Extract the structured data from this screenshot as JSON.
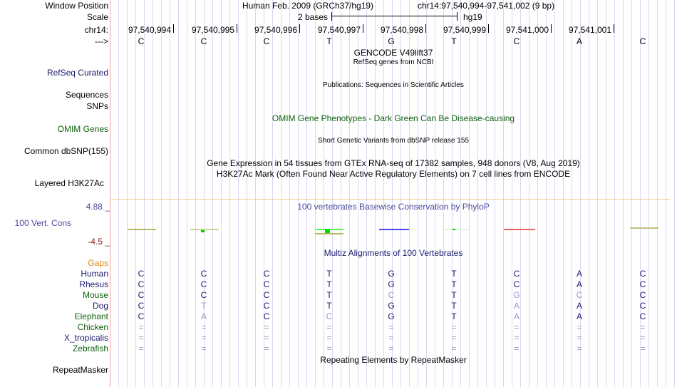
{
  "labels": {
    "window_position": "Window Position",
    "scale": "Scale",
    "chrom": "chr14:",
    "strand": "--->",
    "refseq": "RefSeq Curated",
    "sequences": "Sequences",
    "snps": "SNPs",
    "omim": "OMIM Genes",
    "dbsnp": "Common dbSNP(155)",
    "h3k27ac": "Layered H3K27Ac",
    "cons": "100 Vert. Cons",
    "cons_max": "4.88 _",
    "cons_min": "-4.5 _",
    "gaps": "Gaps",
    "repeatmasker": "RepeatMasker"
  },
  "header": {
    "assembly": "Human Feb. 2009 (GRCh37/hg19)",
    "region": "chr14:97,540,994-97,541,002 (9 bp)",
    "scale_text": "2 bases",
    "scale_db": "hg19"
  },
  "positions": [
    "97,540,994",
    "97,540,995",
    "97,540,996",
    "97,540,997",
    "97,540,998",
    "97,540,999",
    "97,541,000",
    "97,541,001"
  ],
  "bases": [
    "C",
    "C",
    "C",
    "T",
    "G",
    "T",
    "C",
    "A",
    "C"
  ],
  "tracks": {
    "gencode": "GENCODE V49lift37",
    "refseq": "RefSeq genes from NCBI",
    "publications": "Publications: Sequences in Scientific Articles",
    "omim": "OMIM Gene Phenotypes - Dark Green Can Be Disease-causing",
    "dbsnp": "Short Genetic Variants from dbSNP release 155",
    "gtex": "Gene Expression in 54 tissues from GTEx RNA-seq of 17382 samples, 948 donors (V8, Aug 2019)",
    "h3k27ac": "H3K27Ac Mark (Often Found Near Active Regulatory Elements) on 7 cell lines from ENCODE",
    "phylop": "100 vertebrates Basewise Conservation by PhyloP",
    "multiz": "Multiz Alignments of 100 Vertebrates",
    "repeatmasker": "Repeating Elements by RepeatMasker"
  },
  "alignment": [
    {
      "species": "Human",
      "color": "navy",
      "seq": "CCCTGTCAC"
    },
    {
      "species": "Rhesus",
      "color": "navy",
      "seq": "CCCTGTCAC"
    },
    {
      "species": "Mouse",
      "color": "green",
      "seq": "CCCTCTGCC"
    },
    {
      "species": "Dog",
      "color": "navy",
      "seq": "CTCTGTAAC"
    },
    {
      "species": "Elephant",
      "color": "green",
      "seq": "CACCGTAAC"
    },
    {
      "species": "Chicken",
      "color": "green",
      "seq": "========="
    },
    {
      "species": "X_tropicalis",
      "color": "navy",
      "seq": "========="
    },
    {
      "species": "Zebrafish",
      "color": "green",
      "seq": "========="
    }
  ],
  "colors": {
    "navy": "#1a1a6e",
    "green": "#106010",
    "gaps": "#e88a10",
    "mismatch": "#9a9ac0",
    "track_navy": "#1a1a7a",
    "cons_label": "#4a4a9a",
    "cons_min": "#8a2020"
  }
}
